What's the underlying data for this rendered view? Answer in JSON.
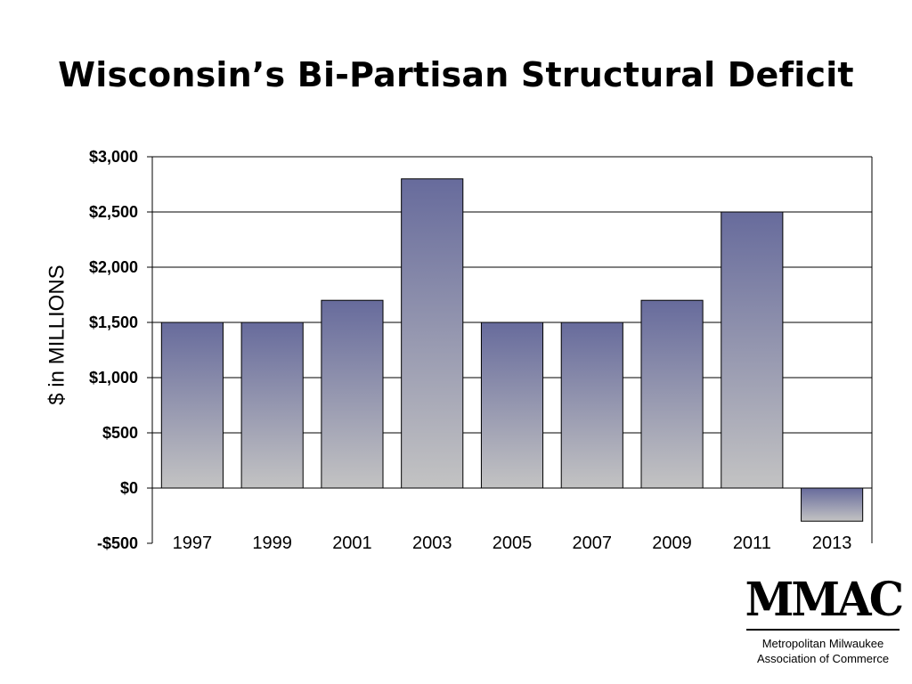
{
  "slide": {
    "title": "Wisconsin’s Bi-Partisan Structural Deficit"
  },
  "chart_data": {
    "type": "bar",
    "title": "Wisconsin’s Bi-Partisan Structural Deficit",
    "xlabel": "",
    "ylabel": "$ in MILLIONS",
    "categories": [
      "1997",
      "1999",
      "2001",
      "2003",
      "2005",
      "2007",
      "2009",
      "2011",
      "2013"
    ],
    "values": [
      1500,
      1500,
      1700,
      2800,
      1500,
      1500,
      1700,
      2500,
      -300
    ],
    "ylim": [
      -500,
      3000
    ],
    "yticks": [
      3000,
      2500,
      2000,
      1500,
      1000,
      500,
      0,
      -500
    ],
    "ytick_labels": [
      "$3,000",
      "$2,500",
      "$2,000",
      "$1,500",
      "$1,000",
      "$500",
      "$0",
      "-$500"
    ],
    "grid": true,
    "legend": "none",
    "colors": {
      "bar_top": "#676b9c",
      "bar_bottom": "#c3c3c3",
      "grid": "#000000"
    }
  },
  "logo": {
    "mark": "MMAC",
    "line1": "Metropolitan Milwaukee",
    "line2": "Association of Commerce"
  }
}
